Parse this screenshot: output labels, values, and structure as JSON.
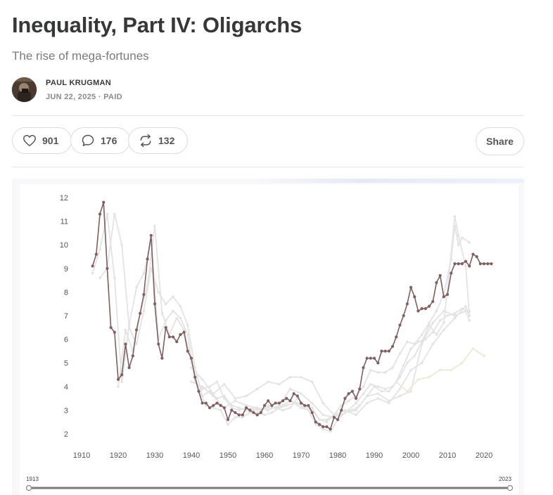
{
  "article": {
    "title": "Inequality, Part IV: Oligarchs",
    "subtitle": "The rise of mega-fortunes",
    "author": "PAUL KRUGMAN",
    "meta": "JUN 22, 2025 · PAID"
  },
  "actions": {
    "likes": "901",
    "comments": "176",
    "restacks": "132",
    "share": "Share"
  },
  "slider": {
    "start_label": "1913",
    "end_label": "2023"
  },
  "chart_data": {
    "type": "line",
    "title": "",
    "xlabel": "",
    "ylabel": "",
    "xlim": [
      1906,
      2030
    ],
    "ylim": [
      1.5,
      12.4
    ],
    "xticks": [
      1910,
      1920,
      1930,
      1940,
      1950,
      1960,
      1970,
      1980,
      1990,
      2000,
      2010,
      2020
    ],
    "yticks": [
      2,
      3,
      4,
      5,
      6,
      7,
      8,
      9,
      10,
      11,
      12
    ],
    "grid": false,
    "legend": "none",
    "colors": {
      "highlight": "#7e5f62",
      "faded": "#e3e3e3",
      "faded_alt": "#ece9da"
    },
    "series": [
      {
        "highlight": true,
        "x": [
          1913,
          1914,
          1915,
          1916,
          1917,
          1918,
          1919,
          1920,
          1921,
          1922,
          1923,
          1924,
          1925,
          1926,
          1927,
          1928,
          1929,
          1930,
          1931,
          1932,
          1933,
          1934,
          1935,
          1936,
          1937,
          1938,
          1939,
          1940,
          1941,
          1942,
          1943,
          1944,
          1945,
          1946,
          1947,
          1948,
          1949,
          1950,
          1951,
          1952,
          1953,
          1954,
          1955,
          1956,
          1957,
          1958,
          1959,
          1960,
          1961,
          1962,
          1963,
          1964,
          1965,
          1966,
          1967,
          1968,
          1969,
          1970,
          1971,
          1972,
          1973,
          1974,
          1975,
          1976,
          1977,
          1978,
          1979,
          1980,
          1981,
          1982,
          1983,
          1984,
          1985,
          1986,
          1987,
          1988,
          1989,
          1990,
          1991,
          1992,
          1993,
          1994,
          1995,
          1996,
          1997,
          1998,
          1999,
          2000,
          2001,
          2002,
          2003,
          2004,
          2005,
          2006,
          2007,
          2008,
          2009,
          2010,
          2011,
          2012,
          2013,
          2014,
          2015,
          2016,
          2017,
          2018,
          2019,
          2020,
          2021,
          2022
        ],
        "y": [
          9.1,
          9.6,
          11.3,
          11.8,
          9.0,
          6.5,
          6.3,
          4.3,
          4.5,
          5.8,
          4.8,
          5.3,
          6.4,
          7.1,
          7.9,
          9.4,
          10.4,
          7.5,
          5.8,
          5.2,
          6.5,
          6.1,
          6.1,
          5.9,
          6.2,
          6.3,
          5.5,
          5.2,
          4.4,
          3.8,
          3.3,
          3.3,
          3.1,
          3.2,
          3.3,
          3.2,
          3.1,
          2.6,
          3.0,
          2.9,
          2.8,
          2.8,
          3.1,
          3.0,
          2.9,
          2.8,
          2.9,
          3.2,
          3.4,
          3.2,
          3.3,
          3.3,
          3.4,
          3.5,
          3.4,
          3.7,
          3.6,
          3.3,
          3.2,
          3.2,
          2.9,
          2.5,
          2.4,
          2.3,
          2.3,
          2.2,
          2.7,
          2.6,
          3.0,
          3.5,
          3.7,
          3.8,
          3.5,
          3.9,
          4.8,
          5.2,
          5.2,
          5.2,
          5.0,
          5.5,
          5.5,
          5.5,
          5.7,
          6.1,
          6.6,
          7.0,
          7.5,
          8.2,
          7.8,
          7.2,
          7.3,
          7.3,
          7.4,
          7.6,
          8.4,
          8.7,
          7.8,
          7.9,
          8.8,
          9.2,
          9.2,
          9.2,
          9.3,
          9.1,
          9.6,
          9.5,
          9.2,
          9.2,
          9.2,
          9.2
        ]
      },
      {
        "x": [
          1913,
          1915,
          1917,
          1919,
          1921,
          1923,
          1925,
          1927,
          1929,
          1931,
          1933,
          1935,
          1937,
          1939,
          1941,
          1943,
          1945,
          1947,
          1949,
          1951,
          1953,
          1955,
          1957,
          1959,
          1961,
          1963,
          1965,
          1967,
          1969,
          1971,
          1973,
          1975,
          1977,
          1979,
          1981,
          1983,
          1985,
          1987,
          1989,
          1991,
          1993,
          1995,
          1997,
          1999,
          2001,
          2003,
          2005,
          2007,
          2009,
          2011,
          2012,
          2013,
          2014,
          2016
        ],
        "y": [
          8.8,
          9.8,
          11.3,
          8.6,
          4.2,
          6.6,
          8.2,
          8.8,
          10.2,
          6.0,
          6.8,
          7.2,
          6.9,
          6.2,
          4.2,
          3.9,
          4.0,
          4.2,
          3.5,
          3.1,
          3.0,
          3.1,
          3.0,
          3.0,
          3.2,
          3.1,
          3.2,
          3.4,
          3.3,
          3.1,
          3.1,
          2.6,
          2.6,
          2.8,
          3.2,
          3.4,
          3.6,
          4.0,
          4.7,
          4.6,
          4.6,
          4.8,
          5.4,
          5.9,
          5.8,
          6.2,
          6.7,
          7.2,
          7.9,
          9.4,
          10.8,
          10.0,
          10.3,
          10.1
        ]
      },
      {
        "x": [
          1915,
          1917,
          1919,
          1921,
          1923,
          1925,
          1927,
          1929,
          1931,
          1933,
          1935,
          1937,
          1939,
          1941,
          1943,
          1945,
          1947,
          1949,
          1951,
          1953,
          1955,
          1957,
          1959,
          1961,
          1963,
          1965,
          1967,
          1969,
          1971,
          1973,
          1975,
          1977,
          1979,
          1981,
          1983,
          1985,
          1987,
          1989,
          1991,
          1993,
          1995,
          1997,
          1999,
          2001,
          2003,
          2005,
          2007,
          2009,
          2011,
          2012,
          2013,
          2015,
          2016
        ],
        "y": [
          8.6,
          9.0,
          11.3,
          10.0,
          6.5,
          5.8,
          7.2,
          9.0,
          8.0,
          7.5,
          7.8,
          7.4,
          6.6,
          4.8,
          3.6,
          3.8,
          3.5,
          3.6,
          3.2,
          3.1,
          3.0,
          3.1,
          3.0,
          3.1,
          3.1,
          3.0,
          3.1,
          3.5,
          3.2,
          3.0,
          2.6,
          2.5,
          2.8,
          2.8,
          3.0,
          3.3,
          3.7,
          4.1,
          4.0,
          3.9,
          4.0,
          4.4,
          5.0,
          5.3,
          5.9,
          6.6,
          6.2,
          6.7,
          9.6,
          11.2,
          10.4,
          9.1,
          7.0
        ]
      },
      {
        "x": [
          1920,
          1922,
          1924,
          1926,
          1928,
          1930,
          1932,
          1934,
          1936,
          1938,
          1940,
          1942,
          1944,
          1946,
          1948,
          1950,
          1952,
          1954,
          1956,
          1958,
          1960,
          1962,
          1964,
          1966,
          1968,
          1970,
          1972,
          1974,
          1976,
          1978,
          1980,
          1982,
          1984,
          1986,
          1988,
          1990,
          1992,
          1994,
          1996,
          1998,
          2000,
          2002,
          2004,
          2006,
          2008,
          2010,
          2012,
          2014,
          2016
        ],
        "y": [
          4.0,
          6.4,
          5.5,
          7.1,
          8.3,
          10.8,
          7.1,
          6.2,
          6.9,
          6.4,
          5.0,
          3.9,
          3.2,
          3.1,
          3.0,
          2.4,
          2.7,
          2.7,
          2.9,
          2.9,
          2.8,
          2.9,
          3.1,
          3.2,
          3.3,
          3.1,
          3.0,
          2.4,
          2.2,
          2.1,
          2.6,
          2.9,
          3.0,
          3.2,
          3.6,
          4.0,
          3.8,
          3.8,
          4.2,
          4.9,
          5.6,
          5.9,
          6.0,
          6.3,
          6.8,
          7.0,
          7.1,
          7.3,
          7.2
        ]
      },
      {
        "x": [
          1940,
          1943,
          1946,
          1949,
          1952,
          1955,
          1958,
          1961,
          1964,
          1967,
          1970,
          1973,
          1976,
          1979,
          1982,
          1985,
          1988,
          1991,
          1994,
          1997,
          2000,
          2003,
          2006,
          2009,
          2012,
          2015,
          2016
        ],
        "y": [
          4.8,
          4.3,
          3.7,
          4.1,
          3.5,
          3.6,
          3.9,
          4.2,
          4.1,
          4.4,
          4.4,
          4.2,
          3.3,
          2.8,
          3.0,
          2.8,
          3.3,
          3.5,
          3.3,
          3.9,
          4.7,
          5.0,
          5.8,
          6.4,
          6.9,
          7.4,
          7.0
        ]
      },
      {
        "x": [
          1940,
          1943,
          1946,
          1949,
          1952,
          1955,
          1958,
          1961,
          1964,
          1967,
          1970,
          1973,
          1976,
          1979,
          1982,
          1985,
          1988,
          1991,
          1994,
          1997,
          2000,
          2003,
          2006,
          2009,
          2012,
          2015,
          2016
        ],
        "y": [
          4.2,
          4.0,
          3.6,
          3.1,
          3.4,
          3.2,
          3.1,
          3.0,
          3.2,
          3.9,
          3.7,
          3.3,
          2.8,
          2.7,
          2.9,
          3.0,
          3.6,
          3.7,
          3.4,
          3.6,
          3.8,
          5.8,
          6.7,
          7.2,
          7.0,
          7.2,
          6.8
        ]
      },
      {
        "x": [
          1996,
          1999,
          2002,
          2005,
          2008,
          2011,
          2014,
          2017,
          2020
        ],
        "y": [
          4.2,
          3.8,
          4.3,
          4.4,
          4.7,
          4.7,
          5.0,
          5.6,
          5.3
        ],
        "alt": true
      }
    ]
  }
}
